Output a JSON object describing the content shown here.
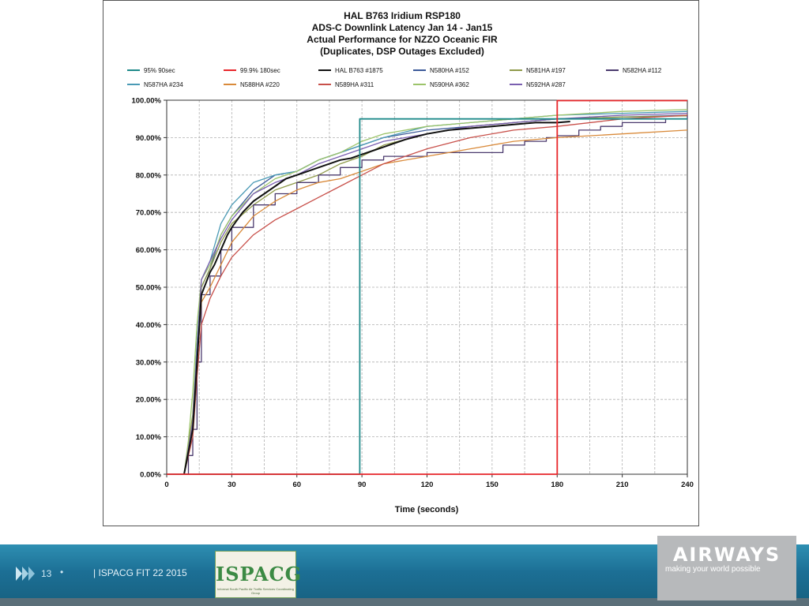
{
  "chart_data": {
    "type": "line",
    "title": [
      "HAL B763 Iridium RSP180",
      "ADS-C Downlink Latency Jan 14 - Jan15",
      "Actual Performance for NZZO Oceanic FIR",
      "(Duplicates, DSP Outages Excluded)"
    ],
    "xlabel": "Time (seconds)",
    "ylabel": "",
    "xlim": [
      0,
      240
    ],
    "ylim": [
      0,
      100
    ],
    "x_ticks": [
      0,
      30,
      60,
      90,
      120,
      150,
      180,
      210,
      240
    ],
    "y_ticks": [
      0,
      10,
      20,
      30,
      40,
      50,
      60,
      70,
      80,
      90,
      100
    ],
    "y_tick_labels": [
      "0.00%",
      "10.00%",
      "20.00%",
      "30.00%",
      "40.00%",
      "50.00%",
      "60.00%",
      "70.00%",
      "80.00%",
      "90.00%",
      "100.00%"
    ],
    "x_tick_labels": [
      "0",
      "30",
      "60",
      "90",
      "120",
      "150",
      "180",
      "210",
      "240"
    ],
    "grid": true,
    "legend_position": "top",
    "series": [
      {
        "name": "95% 90sec",
        "color": "#1f8a8a",
        "step": true,
        "points": [
          [
            0,
            0
          ],
          [
            89,
            0
          ],
          [
            89,
            95
          ],
          [
            240,
            95
          ]
        ]
      },
      {
        "name": "99.9% 180sec",
        "color": "#e8262a",
        "step": true,
        "points": [
          [
            0,
            0
          ],
          [
            180,
            0
          ],
          [
            180,
            99.9
          ],
          [
            240,
            99.9
          ]
        ]
      },
      {
        "name": "HAL B763 #1875",
        "color": "#111111",
        "points": [
          [
            8,
            0
          ],
          [
            10,
            6
          ],
          [
            12,
            12
          ],
          [
            14,
            30
          ],
          [
            16,
            48
          ],
          [
            18,
            51
          ],
          [
            20,
            54
          ],
          [
            22,
            56
          ],
          [
            25,
            60
          ],
          [
            28,
            64
          ],
          [
            30,
            66
          ],
          [
            35,
            70
          ],
          [
            40,
            73
          ],
          [
            45,
            75
          ],
          [
            50,
            77
          ],
          [
            55,
            79
          ],
          [
            60,
            80
          ],
          [
            65,
            81
          ],
          [
            70,
            82
          ],
          [
            75,
            83
          ],
          [
            80,
            84
          ],
          [
            85,
            84.5
          ],
          [
            90,
            85.5
          ],
          [
            95,
            86.5
          ],
          [
            100,
            87.5
          ],
          [
            110,
            89.5
          ],
          [
            120,
            91
          ],
          [
            130,
            92
          ],
          [
            140,
            92.5
          ],
          [
            150,
            93
          ],
          [
            160,
            93.5
          ],
          [
            170,
            94
          ],
          [
            180,
            94
          ],
          [
            186,
            94.3
          ]
        ]
      },
      {
        "name": "N580HA #152",
        "color": "#3c5a99",
        "points": [
          [
            8,
            0
          ],
          [
            10,
            5
          ],
          [
            12,
            14
          ],
          [
            14,
            32
          ],
          [
            16,
            50
          ],
          [
            20,
            55
          ],
          [
            25,
            64
          ],
          [
            30,
            69
          ],
          [
            40,
            76
          ],
          [
            50,
            80
          ],
          [
            60,
            81
          ],
          [
            70,
            84
          ],
          [
            80,
            86
          ],
          [
            90,
            88
          ],
          [
            100,
            90
          ],
          [
            120,
            92
          ],
          [
            140,
            93
          ],
          [
            160,
            94
          ],
          [
            180,
            95
          ],
          [
            210,
            95.5
          ],
          [
            240,
            96
          ]
        ]
      },
      {
        "name": "N581HA #197",
        "color": "#8f9a4a",
        "points": [
          [
            8,
            0
          ],
          [
            10,
            8
          ],
          [
            12,
            16
          ],
          [
            14,
            35
          ],
          [
            16,
            50
          ],
          [
            20,
            55
          ],
          [
            25,
            62
          ],
          [
            30,
            67
          ],
          [
            40,
            72
          ],
          [
            50,
            76
          ],
          [
            60,
            78
          ],
          [
            70,
            80
          ],
          [
            80,
            83
          ],
          [
            90,
            85
          ],
          [
            100,
            88
          ],
          [
            120,
            91
          ],
          [
            140,
            93
          ],
          [
            160,
            94
          ],
          [
            180,
            95
          ],
          [
            210,
            95.5
          ],
          [
            240,
            95.8
          ]
        ]
      },
      {
        "name": "N582HA #112",
        "color": "#4b3a6e",
        "step": true,
        "points": [
          [
            8,
            0
          ],
          [
            10,
            5
          ],
          [
            12,
            12
          ],
          [
            14,
            30
          ],
          [
            16,
            48
          ],
          [
            20,
            53
          ],
          [
            25,
            60
          ],
          [
            30,
            66
          ],
          [
            40,
            72
          ],
          [
            50,
            75
          ],
          [
            60,
            78
          ],
          [
            70,
            80
          ],
          [
            80,
            82
          ],
          [
            90,
            84
          ],
          [
            100,
            85
          ],
          [
            110,
            85
          ],
          [
            120,
            86
          ],
          [
            130,
            86
          ],
          [
            145,
            86
          ],
          [
            150,
            86
          ],
          [
            155,
            88
          ],
          [
            165,
            89
          ],
          [
            175,
            90
          ],
          [
            180,
            90.5
          ],
          [
            190,
            92
          ],
          [
            200,
            93
          ],
          [
            210,
            94
          ],
          [
            230,
            95
          ],
          [
            240,
            96
          ]
        ]
      },
      {
        "name": "N587HA #234",
        "color": "#4a9ab5",
        "points": [
          [
            8,
            0
          ],
          [
            10,
            6
          ],
          [
            12,
            14
          ],
          [
            14,
            35
          ],
          [
            16,
            52
          ],
          [
            20,
            57
          ],
          [
            25,
            67
          ],
          [
            30,
            72
          ],
          [
            35,
            75
          ],
          [
            40,
            78
          ],
          [
            50,
            80
          ],
          [
            60,
            81
          ],
          [
            70,
            84
          ],
          [
            80,
            86
          ],
          [
            90,
            88
          ],
          [
            100,
            90
          ],
          [
            120,
            93
          ],
          [
            140,
            94
          ],
          [
            160,
            95
          ],
          [
            180,
            96
          ],
          [
            210,
            96.5
          ],
          [
            240,
            97
          ]
        ]
      },
      {
        "name": "N588HA #220",
        "color": "#d98a3a",
        "points": [
          [
            8,
            0
          ],
          [
            10,
            6
          ],
          [
            12,
            12
          ],
          [
            14,
            30
          ],
          [
            16,
            46
          ],
          [
            20,
            50
          ],
          [
            25,
            56
          ],
          [
            30,
            62
          ],
          [
            40,
            69
          ],
          [
            50,
            73
          ],
          [
            60,
            76
          ],
          [
            70,
            78
          ],
          [
            80,
            79
          ],
          [
            90,
            81
          ],
          [
            100,
            83
          ],
          [
            120,
            85
          ],
          [
            140,
            87
          ],
          [
            160,
            89
          ],
          [
            180,
            90
          ],
          [
            210,
            91
          ],
          [
            240,
            92
          ]
        ]
      },
      {
        "name": "N589HA #311",
        "color": "#c8504a",
        "points": [
          [
            8,
            0
          ],
          [
            10,
            5
          ],
          [
            12,
            10
          ],
          [
            14,
            26
          ],
          [
            16,
            40
          ],
          [
            20,
            47
          ],
          [
            25,
            53
          ],
          [
            30,
            58
          ],
          [
            40,
            64
          ],
          [
            50,
            68
          ],
          [
            60,
            71
          ],
          [
            70,
            74
          ],
          [
            80,
            77
          ],
          [
            90,
            80
          ],
          [
            100,
            83
          ],
          [
            120,
            87
          ],
          [
            140,
            90
          ],
          [
            160,
            92
          ],
          [
            180,
            93
          ],
          [
            210,
            95
          ],
          [
            240,
            96
          ]
        ]
      },
      {
        "name": "N590HA #362",
        "color": "#9cc46a",
        "points": [
          [
            8,
            0
          ],
          [
            10,
            9
          ],
          [
            12,
            22
          ],
          [
            14,
            40
          ],
          [
            16,
            52
          ],
          [
            20,
            56
          ],
          [
            25,
            64
          ],
          [
            30,
            69
          ],
          [
            40,
            75
          ],
          [
            50,
            79
          ],
          [
            60,
            81
          ],
          [
            70,
            84
          ],
          [
            80,
            86
          ],
          [
            90,
            89
          ],
          [
            100,
            91
          ],
          [
            120,
            93
          ],
          [
            140,
            94
          ],
          [
            160,
            95
          ],
          [
            180,
            96
          ],
          [
            210,
            97
          ],
          [
            240,
            97.5
          ]
        ]
      },
      {
        "name": "N592HA #287",
        "color": "#7a5fb0",
        "points": [
          [
            8,
            0
          ],
          [
            10,
            7
          ],
          [
            12,
            14
          ],
          [
            14,
            33
          ],
          [
            16,
            52
          ],
          [
            20,
            57
          ],
          [
            25,
            63
          ],
          [
            30,
            68
          ],
          [
            40,
            75
          ],
          [
            50,
            78
          ],
          [
            60,
            80
          ],
          [
            70,
            83
          ],
          [
            80,
            85
          ],
          [
            90,
            87
          ],
          [
            100,
            89
          ],
          [
            120,
            91
          ],
          [
            140,
            93
          ],
          [
            160,
            94
          ],
          [
            180,
            95
          ],
          [
            210,
            96
          ],
          [
            240,
            96.5
          ]
        ]
      }
    ]
  },
  "footer": {
    "slide_number": "13",
    "bullet": "•",
    "caption": "| ISPACG FIT 22 2015",
    "partner_logo_text": "ISPACG",
    "partner_logo_subtitle": "Informal South Pacific Air Traffic Services Coordinating Group",
    "brand_name": "AIRWAYS",
    "brand_tagline": "making your world possible"
  }
}
